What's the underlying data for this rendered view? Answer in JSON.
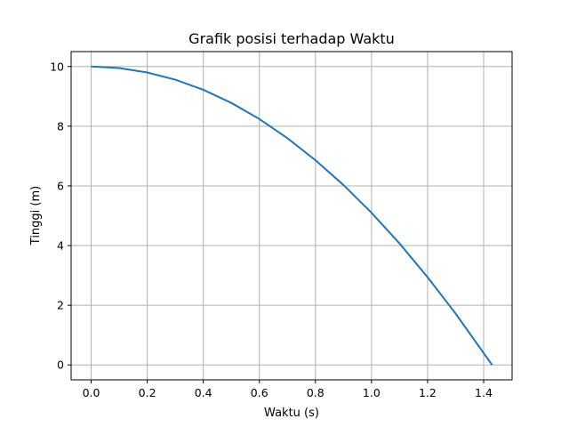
{
  "chart_data": {
    "type": "line",
    "title": "Grafik posisi terhadap Waktu",
    "xlabel": "Waktu (s)",
    "ylabel": "Tinggi (m)",
    "xlim": [
      -0.0715,
      1.5015
    ],
    "ylim": [
      -0.5,
      10.5
    ],
    "xticks": [
      0.0,
      0.2,
      0.4,
      0.6,
      0.8,
      1.0,
      1.2,
      1.4
    ],
    "xtick_labels": [
      "0.0",
      "0.2",
      "0.4",
      "0.6",
      "0.8",
      "1.0",
      "1.2",
      "1.4"
    ],
    "yticks": [
      0,
      2,
      4,
      6,
      8,
      10
    ],
    "ytick_labels": [
      "0",
      "2",
      "4",
      "6",
      "8",
      "10"
    ],
    "grid": true,
    "series": [
      {
        "color": "#1f77b4",
        "x": [
          0.0,
          0.1,
          0.2,
          0.3,
          0.4,
          0.5,
          0.6,
          0.7,
          0.8,
          0.9,
          1.0,
          1.1,
          1.2,
          1.3,
          1.43
        ],
        "y": [
          10.0,
          9.95,
          9.8,
          9.56,
          9.22,
          8.78,
          8.24,
          7.6,
          6.86,
          6.03,
          5.1,
          4.07,
          2.94,
          1.72,
          0.0
        ]
      }
    ]
  }
}
